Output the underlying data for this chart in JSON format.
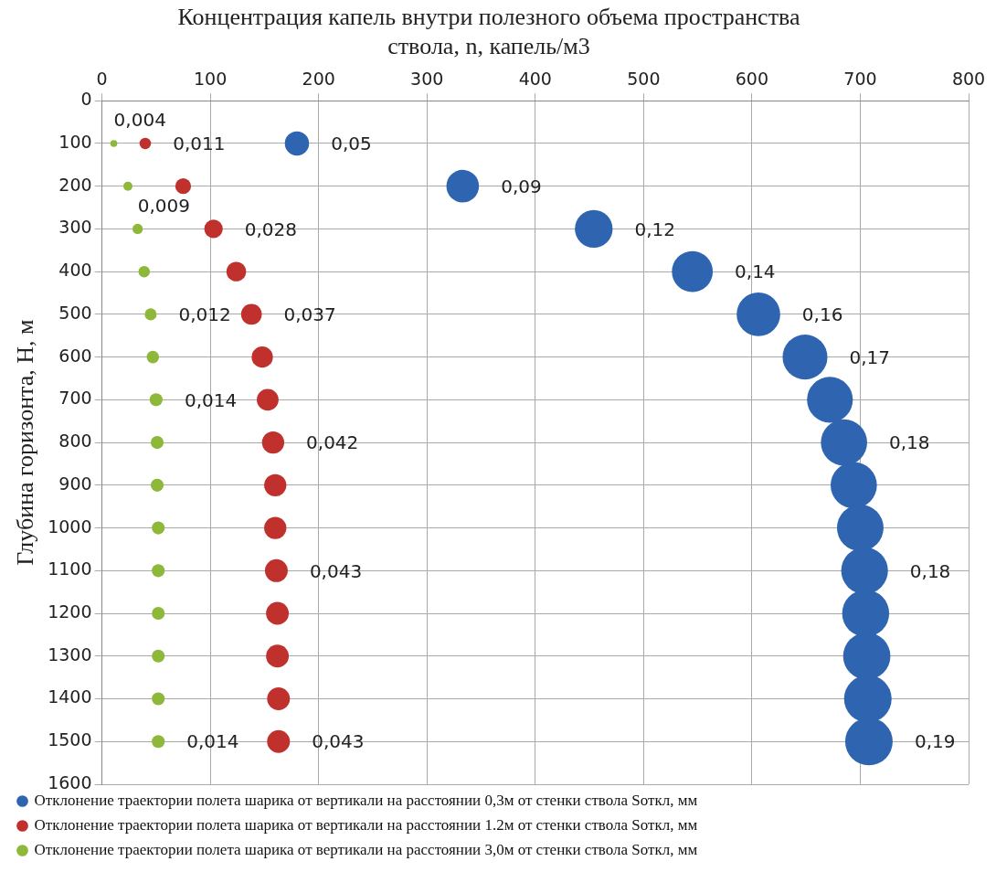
{
  "chart_data": {
    "type": "bubble",
    "title": [
      "Концентрация капель внутри полезного объема пространства",
      "ствола, n, капель/м3"
    ],
    "ylabel": "Глубина горизонта, H, м",
    "xlim": [
      0,
      800
    ],
    "xticks": [
      0,
      100,
      200,
      300,
      400,
      500,
      600,
      700,
      800
    ],
    "ylim": [
      1600,
      0
    ],
    "yticks": [
      0,
      100,
      200,
      300,
      400,
      500,
      600,
      700,
      800,
      900,
      1000,
      1100,
      1200,
      1300,
      1400,
      1500,
      1600
    ],
    "grid": true,
    "legend": "bottom",
    "series": [
      {
        "name": "Отклонение траектории полета шарика от вертикали на расстоянии 0,3м от стенки ствола Sоткл, мм",
        "color": "#2e64b0",
        "x": [
          180,
          333,
          454,
          545,
          606,
          649,
          672,
          685,
          694,
          700,
          704,
          705,
          706,
          707,
          708
        ],
        "values": [
          100,
          200,
          300,
          400,
          500,
          600,
          700,
          800,
          900,
          1000,
          1100,
          1200,
          1300,
          1400,
          1500
        ],
        "sizes": [
          0.26,
          0.47,
          0.63,
          0.74,
          0.84,
          0.89,
          0.93,
          0.95,
          0.95,
          0.96,
          0.97,
          0.98,
          0.99,
          1,
          1
        ]
      },
      {
        "name": "Отклонение траектории полета шарика от вертикали на расстоянии 1.2м от стенки ствола Sоткл, мм",
        "color": "#c0302c",
        "x": [
          40,
          75,
          103,
          124,
          138,
          148,
          153,
          158,
          160,
          160,
          161,
          162,
          162,
          163,
          163
        ],
        "values": [
          100,
          200,
          300,
          400,
          500,
          600,
          700,
          800,
          900,
          1000,
          1100,
          1200,
          1300,
          1400,
          1500
        ],
        "sizes": [
          0.058,
          0.11,
          0.15,
          0.17,
          0.19,
          0.2,
          0.21,
          0.22,
          0.22,
          0.22,
          0.23,
          0.23,
          0.23,
          0.23,
          0.23
        ]
      },
      {
        "name": "Отклонение траектории полета шарика от вертикали на расстоянии 3,0м от стенки ствола Sоткл, мм",
        "color": "#8db83a",
        "x": [
          11,
          24,
          33,
          39,
          45,
          47,
          50,
          51,
          51,
          52,
          52,
          52,
          52,
          52,
          52
        ],
        "values": [
          100,
          200,
          300,
          400,
          500,
          600,
          700,
          800,
          900,
          1000,
          1100,
          1200,
          1300,
          1400,
          1500
        ],
        "sizes": [
          0.021,
          0.037,
          0.047,
          0.058,
          0.063,
          0.068,
          0.074,
          0.074,
          0.074,
          0.074,
          0.074,
          0.074,
          0.074,
          0.074,
          0.074
        ]
      }
    ],
    "annotations": [
      {
        "text": "0,05",
        "x": 180,
        "y": 100
      },
      {
        "text": "0,09",
        "x": 333,
        "y": 200
      },
      {
        "text": "0,12",
        "x": 454,
        "y": 300
      },
      {
        "text": "0,14",
        "x": 545,
        "y": 400
      },
      {
        "text": "0,16",
        "x": 606,
        "y": 500
      },
      {
        "text": "0,17",
        "x": 649,
        "y": 600
      },
      {
        "text": "0,18",
        "x": 685,
        "y": 800
      },
      {
        "text": "0,18",
        "x": 704,
        "y": 1100
      },
      {
        "text": "0,19",
        "x": 708,
        "y": 1500
      },
      {
        "text": "0,011",
        "x": 40,
        "y": 100
      },
      {
        "text": "0,028",
        "x": 103,
        "y": 300
      },
      {
        "text": "0,037",
        "x": 138,
        "y": 500
      },
      {
        "text": "0,042",
        "x": 158,
        "y": 800
      },
      {
        "text": "0,043",
        "x": 161,
        "y": 1100
      },
      {
        "text": "0,043",
        "x": 163,
        "y": 1500
      },
      {
        "text": "0,004",
        "x": 11,
        "y": 100
      },
      {
        "text": "0,009",
        "x": 33,
        "y": 300
      },
      {
        "text": "0,012",
        "x": 45,
        "y": 500
      },
      {
        "text": "0,014",
        "x": 50,
        "y": 700
      },
      {
        "text": "0,014",
        "x": 52,
        "y": 1500
      }
    ]
  }
}
